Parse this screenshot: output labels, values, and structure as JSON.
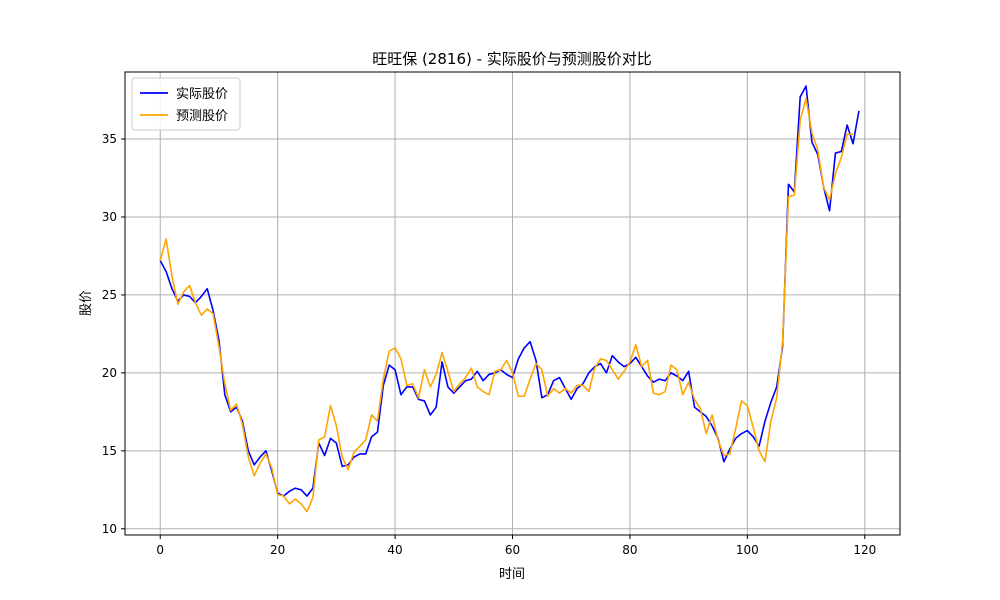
{
  "chart_data": {
    "type": "line",
    "title": "旺旺保 (2816) - 实际股价与预测股价对比",
    "xlabel": "时间",
    "ylabel": "股价",
    "xlim": [
      -6,
      126
    ],
    "ylim": [
      9.6,
      39.3
    ],
    "x_ticks": [
      0,
      20,
      40,
      60,
      80,
      100,
      120
    ],
    "y_ticks": [
      10,
      15,
      20,
      25,
      30,
      35
    ],
    "grid": true,
    "legend_position": "upper-left",
    "series": [
      {
        "name": "实际股价",
        "color": "#0000ff",
        "values": [
          27.2,
          26.5,
          25.4,
          24.6,
          25.0,
          24.9,
          24.5,
          24.9,
          25.4,
          24.0,
          22.1,
          18.6,
          17.5,
          17.8,
          16.9,
          15.0,
          14.1,
          14.6,
          15.0,
          13.7,
          12.3,
          12.1,
          12.4,
          12.6,
          12.5,
          12.1,
          12.6,
          15.5,
          14.7,
          15.8,
          15.5,
          14.0,
          14.1,
          14.6,
          14.8,
          14.8,
          15.9,
          16.2,
          19.2,
          20.5,
          20.2,
          18.6,
          19.1,
          19.1,
          18.3,
          18.2,
          17.3,
          17.8,
          20.7,
          19.1,
          18.7,
          19.1,
          19.5,
          19.6,
          20.1,
          19.5,
          19.9,
          20.0,
          20.2,
          19.9,
          19.7,
          20.9,
          21.6,
          22.0,
          20.8,
          18.4,
          18.6,
          19.5,
          19.7,
          19.0,
          18.3,
          19.0,
          19.3,
          20.0,
          20.4,
          20.6,
          20.0,
          21.1,
          20.7,
          20.4,
          20.6,
          21.0,
          20.4,
          19.8,
          19.4,
          19.6,
          19.5,
          20.0,
          19.8,
          19.5,
          20.1,
          17.8,
          17.5,
          17.2,
          16.6,
          15.8,
          14.3,
          15.1,
          15.8,
          16.1,
          16.3,
          15.9,
          15.3,
          16.9,
          18.1,
          19.1,
          21.7,
          32.1,
          31.6,
          37.7,
          38.4,
          34.8,
          34.0,
          31.9,
          30.4,
          34.1,
          34.2,
          35.9,
          34.7,
          36.8
        ]
      },
      {
        "name": "预测股价",
        "color": "#ffa500",
        "values": [
          27.2,
          28.6,
          26.2,
          24.4,
          25.2,
          25.6,
          24.5,
          23.7,
          24.1,
          23.8,
          21.7,
          19.3,
          17.6,
          18.0,
          16.7,
          14.6,
          13.4,
          14.2,
          14.8,
          13.9,
          12.2,
          12.1,
          11.6,
          11.9,
          11.6,
          11.1,
          12.0,
          15.7,
          15.9,
          17.9,
          16.6,
          14.6,
          13.8,
          14.9,
          15.3,
          15.7,
          17.3,
          16.9,
          19.6,
          21.4,
          21.6,
          20.9,
          19.2,
          19.3,
          18.4,
          20.2,
          19.1,
          19.9,
          21.3,
          20.1,
          18.8,
          19.3,
          19.7,
          20.3,
          19.1,
          18.8,
          18.6,
          20.1,
          20.2,
          20.8,
          20.0,
          18.5,
          18.5,
          19.6,
          20.6,
          20.2,
          18.5,
          19.0,
          18.7,
          19.0,
          18.7,
          19.2,
          19.2,
          18.8,
          20.3,
          20.9,
          20.8,
          20.2,
          19.6,
          20.1,
          20.7,
          21.8,
          20.4,
          20.8,
          18.7,
          18.6,
          18.8,
          20.5,
          20.2,
          18.6,
          19.4,
          18.3,
          17.7,
          16.1,
          17.3,
          15.7,
          14.7,
          14.8,
          16.4,
          18.2,
          17.9,
          16.5,
          15.0,
          14.3,
          16.9,
          18.4,
          22.0,
          31.3,
          31.4,
          36.2,
          37.6,
          35.4,
          34.3,
          31.9,
          31.1,
          32.8,
          33.8,
          35.3,
          35.3
        ]
      }
    ]
  }
}
